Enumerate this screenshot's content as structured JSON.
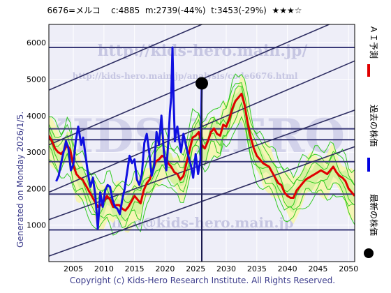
{
  "header": {
    "code_name": "6676=メルコ",
    "current": "c:4885",
    "min": "m:2739(-44%)",
    "target": "t:3453(-29%)",
    "rating": "★★★☆"
  },
  "footer": "Copyright (c) Kids-Hero Research Institute. All Rights Reserved.",
  "side_note": "Generated on Monday 2026/1/5.",
  "watermarks": {
    "url_top": "http://kids-hero.main.jp/",
    "url_mid": "http://kids-hero.main.jp/analysis/code6676.html",
    "email": "info@kids-hero.main.jp",
    "logo": "KIDS-HERO"
  },
  "legend": [
    {
      "label": "ＡＩ予測",
      "color": "#e00000"
    },
    {
      "label": "過去の株価",
      "color": "#0000e0"
    },
    {
      "label": "最新の株価",
      "color": "#000000"
    }
  ],
  "colors": {
    "background": "#eeeef8",
    "grid": "#ffffff",
    "hline": "#3a3a78",
    "trend": "#2e2e62",
    "green_band": "#33cc22",
    "band_fill": "#d8f2a0",
    "yellow_fill": "#f5f5b5"
  },
  "chart_data": {
    "type": "line",
    "title": "",
    "xlabel": "",
    "ylabel": "",
    "xlim": [
      2001,
      2051
    ],
    "ylim": [
      0,
      6500
    ],
    "x_ticks": [
      2005,
      2010,
      2015,
      2020,
      2025,
      2030,
      2035,
      2040,
      2045,
      2050
    ],
    "y_ticks": [
      1000,
      2000,
      3000,
      4000,
      5000,
      6000
    ],
    "grid": true,
    "legend_position": "right-vertical",
    "hlines": [
      5870,
      3640,
      3340,
      2739,
      1850,
      870
    ],
    "trend_lines": [
      {
        "x": [
          2001,
          2051
        ],
        "y": [
          4700,
          8300
        ]
      },
      {
        "x": [
          2001,
          2051
        ],
        "y": [
          3200,
          6800
        ]
      },
      {
        "x": [
          2001,
          2051
        ],
        "y": [
          1900,
          5500
        ]
      },
      {
        "x": [
          2001,
          2051
        ],
        "y": [
          1150,
          4150
        ]
      },
      {
        "x": [
          2001,
          2051
        ],
        "y": [
          150,
          3150
        ]
      }
    ],
    "latest": {
      "x": 2026.0,
      "y": 4885
    },
    "series": [
      {
        "name": "過去の株価",
        "x": [
          2002.2,
          2002.6,
          2003.0,
          2003.4,
          2003.8,
          2004.2,
          2004.6,
          2005.0,
          2005.4,
          2005.8,
          2006.0,
          2006.3,
          2006.6,
          2007.0,
          2007.4,
          2007.8,
          2008.2,
          2008.6,
          2009.0,
          2009.4,
          2009.8,
          2010.2,
          2010.6,
          2011.0,
          2011.4,
          2011.8,
          2012.2,
          2012.6,
          2013.0,
          2013.4,
          2013.8,
          2014.2,
          2014.6,
          2015.0,
          2015.4,
          2015.8,
          2016.2,
          2016.6,
          2017.0,
          2017.4,
          2017.8,
          2018.2,
          2018.6,
          2019.0,
          2019.4,
          2019.8,
          2020.2,
          2020.5,
          2020.8,
          2021.0,
          2021.2,
          2021.4,
          2021.6,
          2021.8,
          2022.0,
          2022.3,
          2022.6,
          2023.0,
          2023.4,
          2023.8,
          2024.2,
          2024.6,
          2025.0,
          2025.4,
          2025.8,
          2026.0
        ],
        "y": [
          2200,
          2350,
          2700,
          3000,
          3300,
          3100,
          2500,
          2650,
          3300,
          3700,
          3500,
          3200,
          3400,
          2900,
          2400,
          2050,
          2300,
          1800,
          900,
          1900,
          1500,
          1950,
          2100,
          2050,
          1700,
          1500,
          1450,
          1300,
          1700,
          2000,
          2450,
          2900,
          2700,
          2800,
          2250,
          2100,
          2400,
          3250,
          3500,
          3000,
          2350,
          2600,
          3550,
          3200,
          4000,
          3000,
          2500,
          3200,
          4100,
          4500,
          5870,
          4400,
          3300,
          3550,
          3700,
          3350,
          3000,
          3500,
          3200,
          2900,
          2650,
          2300,
          2950,
          2400,
          2800,
          4885
        ],
        "color": "#1010e0"
      },
      {
        "name": "ＡＩ予測",
        "x": [
          2001.0,
          2001.5,
          2002.0,
          2002.5,
          2003.0,
          2003.5,
          2004.0,
          2004.5,
          2005.0,
          2005.5,
          2006.0,
          2006.5,
          2007.0,
          2007.5,
          2008.0,
          2008.5,
          2009.0,
          2009.5,
          2010.0,
          2010.5,
          2011.0,
          2011.5,
          2012.0,
          2012.5,
          2013.0,
          2013.5,
          2014.0,
          2014.5,
          2015.0,
          2015.5,
          2016.0,
          2016.5,
          2017.0,
          2017.5,
          2018.0,
          2018.5,
          2019.0,
          2019.5,
          2020.0,
          2020.5,
          2021.0,
          2021.5,
          2022.0,
          2022.5,
          2023.0,
          2023.5,
          2024.0,
          2024.5,
          2025.0,
          2025.5,
          2026.0,
          2026.5,
          2027.0,
          2027.5,
          2028.0,
          2028.5,
          2029.0,
          2029.5,
          2030.0,
          2030.5,
          2031.0,
          2031.5,
          2032.0,
          2032.5,
          2033.0,
          2033.5,
          2034.0,
          2034.5,
          2035.0,
          2035.5,
          2036.0,
          2036.5,
          2037.0,
          2037.5,
          2038.0,
          2038.5,
          2039.0,
          2039.5,
          2040.0,
          2040.5,
          2041.0,
          2041.5,
          2042.0,
          2042.5,
          2043.0,
          2043.5,
          2044.0,
          2044.5,
          2045.0,
          2045.5,
          2046.0,
          2046.5,
          2047.0,
          2047.5,
          2048.0,
          2048.5,
          2049.0,
          2049.5,
          2050.0,
          2050.5,
          2051.0
        ],
        "y": [
          3450,
          3300,
          3100,
          3000,
          2950,
          3050,
          3200,
          3050,
          2650,
          2400,
          2300,
          2250,
          2100,
          1950,
          1800,
          1650,
          1500,
          1550,
          1650,
          1800,
          1700,
          1500,
          1550,
          1550,
          1450,
          1400,
          1500,
          1650,
          1800,
          1700,
          1600,
          1950,
          2150,
          2250,
          2500,
          2750,
          2800,
          2900,
          2850,
          2700,
          2600,
          2450,
          2400,
          2250,
          2350,
          2700,
          3050,
          3400,
          3450,
          3550,
          3200,
          3100,
          3300,
          3550,
          3650,
          3500,
          3450,
          3750,
          3700,
          3900,
          4200,
          4400,
          4500,
          4600,
          4300,
          3800,
          3400,
          3100,
          2900,
          2800,
          2700,
          2650,
          2600,
          2450,
          2300,
          2150,
          2100,
          1900,
          1800,
          1750,
          1750,
          1950,
          2050,
          2150,
          2250,
          2300,
          2350,
          2400,
          2450,
          2500,
          2450,
          2400,
          2500,
          2600,
          2450,
          2350,
          2300,
          2200,
          2000,
          1900,
          1800
        ],
        "color": "#e00000"
      }
    ]
  }
}
